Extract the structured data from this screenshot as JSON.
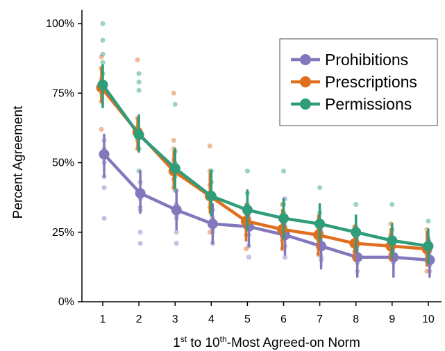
{
  "chart_data": {
    "type": "line",
    "xlabel_parts": [
      "1",
      "st",
      " to 10",
      "th",
      "-Most Agreed-on Norm"
    ],
    "ylabel": "Percent Agreement",
    "categories": [
      "1",
      "2",
      "3",
      "4",
      "5",
      "6",
      "7",
      "8",
      "9",
      "10"
    ],
    "y_tick_values": [
      0,
      25,
      50,
      75,
      100
    ],
    "y_tick_labels": [
      "0%",
      "25%",
      "50%",
      "75%",
      "100%"
    ],
    "ylim": [
      0,
      100
    ],
    "legend_position": "top-right",
    "series": [
      {
        "name": "Prohibitions",
        "color": "#8478bd",
        "values": [
          53,
          39,
          33,
          28,
          27,
          24,
          20,
          16,
          16,
          15
        ],
        "ci_low": [
          45,
          32,
          26,
          21,
          20,
          17,
          12,
          9,
          9,
          9
        ],
        "ci_high": [
          60,
          47,
          40,
          35,
          33,
          31,
          28,
          24,
          23,
          22
        ],
        "points": [
          [
            58,
            55,
            50,
            45,
            41,
            30
          ],
          [
            43,
            40,
            37,
            34,
            33,
            25,
            21
          ],
          [
            40,
            35,
            31,
            30,
            25,
            21
          ],
          [
            33,
            30,
            26,
            25,
            21
          ],
          [
            30,
            27,
            24,
            20,
            16
          ],
          [
            37,
            27,
            23,
            20,
            16
          ],
          [
            25,
            21,
            19,
            16,
            15
          ],
          [
            20,
            17,
            14,
            11
          ],
          [
            20,
            17,
            14
          ],
          [
            18,
            15,
            13,
            11
          ]
        ]
      },
      {
        "name": "Prescriptions",
        "color": "#df6f1e",
        "values": [
          77,
          61,
          47,
          38,
          29,
          26,
          24,
          21,
          20,
          19
        ],
        "ci_low": [
          72,
          55,
          41,
          32,
          22,
          19,
          17,
          15,
          15,
          13
        ],
        "ci_high": [
          84,
          66,
          54,
          46,
          35,
          33,
          31,
          27,
          26,
          25
        ],
        "points": [
          [
            88,
            84,
            80,
            75,
            72,
            62
          ],
          [
            87,
            66,
            63,
            58,
            55
          ],
          [
            75,
            58,
            55,
            51,
            47,
            44,
            41
          ],
          [
            56,
            47,
            42,
            38,
            34,
            25
          ],
          [
            34,
            30,
            27,
            24,
            19
          ],
          [
            35,
            31,
            29,
            25,
            22,
            19
          ],
          [
            29,
            26,
            24,
            22,
            17
          ],
          [
            27,
            24,
            21,
            18
          ],
          [
            28,
            24,
            21,
            17
          ],
          [
            26,
            21,
            17,
            11
          ]
        ]
      },
      {
        "name": "Permissions",
        "color": "#2f9c7a",
        "values": [
          78,
          60,
          48,
          38,
          33,
          30,
          28,
          25,
          22,
          20
        ],
        "ci_low": [
          70,
          54,
          41,
          31,
          26,
          23,
          22,
          18,
          16,
          14
        ],
        "ci_high": [
          85,
          67,
          55,
          47,
          40,
          37,
          35,
          31,
          28,
          26
        ],
        "points": [
          [
            100,
            94,
            89,
            86,
            82,
            78
          ],
          [
            82,
            79,
            76,
            60,
            55,
            47
          ],
          [
            71,
            54,
            50,
            45,
            40
          ],
          [
            47,
            43,
            38,
            34
          ],
          [
            47,
            39,
            35,
            31,
            28
          ],
          [
            47,
            35,
            32,
            28,
            25
          ],
          [
            41,
            32,
            28,
            24,
            21
          ],
          [
            35,
            27,
            24,
            21
          ],
          [
            35,
            26,
            22
          ],
          [
            29,
            23,
            19
          ]
        ]
      }
    ]
  }
}
